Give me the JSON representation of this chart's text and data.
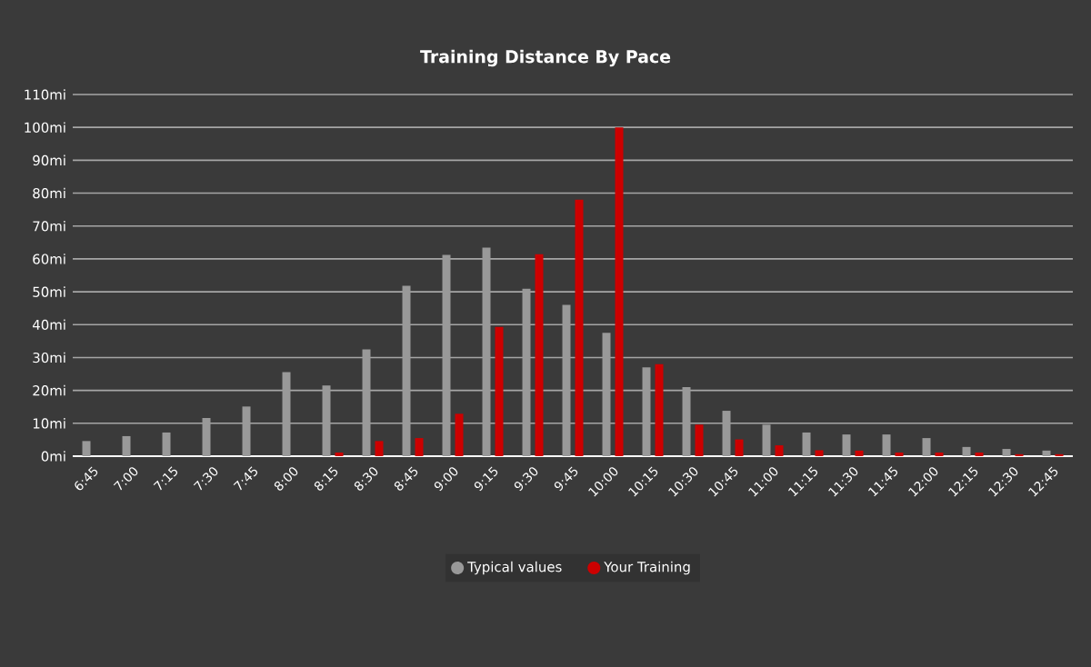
{
  "chart_data": {
    "type": "bar",
    "title": "Training Distance By Pace",
    "categories": [
      "6:45",
      "7:00",
      "7:15",
      "7:30",
      "7:45",
      "8:00",
      "8:15",
      "8:30",
      "8:45",
      "9:00",
      "9:15",
      "9:30",
      "9:45",
      "10:00",
      "10:15",
      "10:30",
      "10:45",
      "11:00",
      "11:15",
      "11:30",
      "11:45",
      "12:00",
      "12:15",
      "12:30",
      "12:45"
    ],
    "series": [
      {
        "name": "Typical values",
        "color": "#999999",
        "values": [
          4.6,
          6.1,
          7.2,
          11.6,
          15.1,
          25.6,
          21.5,
          32.5,
          51.8,
          61.2,
          63.4,
          50.9,
          46,
          37.5,
          27,
          21,
          13.8,
          9.6,
          7.2,
          6.6,
          6.6,
          5.5,
          2.8,
          2.2,
          1.7
        ]
      },
      {
        "name": "Your Training",
        "color": "#cc0000",
        "values": [
          0,
          0,
          0,
          0,
          0,
          0,
          1.1,
          4.6,
          5.5,
          12.9,
          39.3,
          61.4,
          78,
          100,
          28,
          9.6,
          5.1,
          3.3,
          1.8,
          1.7,
          1.1,
          1.1,
          1.1,
          0.6,
          0.6
        ]
      }
    ],
    "ylim": [
      0,
      110
    ],
    "yticks": [
      {
        "value": 0,
        "label": "0mi"
      },
      {
        "value": 10,
        "label": "10mi"
      },
      {
        "value": 20,
        "label": "20mi"
      },
      {
        "value": 30,
        "label": "30mi"
      },
      {
        "value": 40,
        "label": "40mi"
      },
      {
        "value": 50,
        "label": "50mi"
      },
      {
        "value": 60,
        "label": "60mi"
      },
      {
        "value": 70,
        "label": "70mi"
      },
      {
        "value": 80,
        "label": "80mi"
      },
      {
        "value": 90,
        "label": "90mi"
      },
      {
        "value": 100,
        "label": "100mi"
      },
      {
        "value": 110,
        "label": "110mi"
      }
    ],
    "grid": "y",
    "legend": "bottom"
  }
}
